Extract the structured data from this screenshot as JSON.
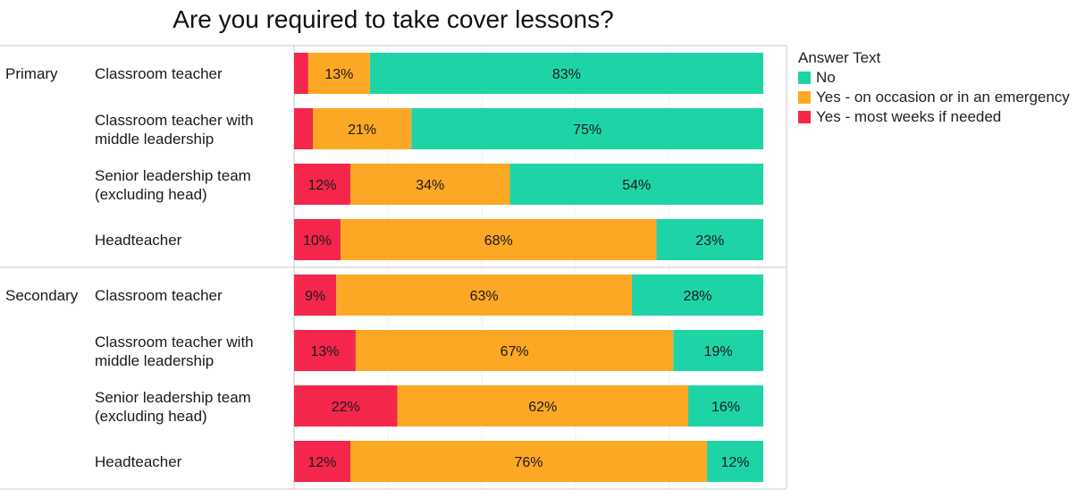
{
  "title": "Are you required to take cover lessons?",
  "chart_data": {
    "type": "bar",
    "stacked": true,
    "orientation": "horizontal",
    "title": "Are you required to take cover lessons?",
    "groups": [
      {
        "name": "Primary",
        "rows": [
          {
            "label": "Classroom teacher",
            "values": {
              "most_weeks": 3,
              "occasion": 13,
              "no": 83
            }
          },
          {
            "label": "Classroom teacher with middle leadership",
            "values": {
              "most_weeks": 4,
              "occasion": 21,
              "no": 75
            }
          },
          {
            "label": "Senior leadership team (excluding head)",
            "values": {
              "most_weeks": 12,
              "occasion": 34,
              "no": 54
            }
          },
          {
            "label": "Headteacher",
            "values": {
              "most_weeks": 10,
              "occasion": 68,
              "no": 23
            }
          }
        ]
      },
      {
        "name": "Secondary",
        "rows": [
          {
            "label": "Classroom teacher",
            "values": {
              "most_weeks": 9,
              "occasion": 63,
              "no": 28
            }
          },
          {
            "label": "Classroom teacher with middle leadership",
            "values": {
              "most_weeks": 13,
              "occasion": 67,
              "no": 19
            }
          },
          {
            "label": "Senior leadership team (excluding head)",
            "values": {
              "most_weeks": 22,
              "occasion": 62,
              "no": 16
            }
          },
          {
            "label": "Headteacher",
            "values": {
              "most_weeks": 12,
              "occasion": 76,
              "no": 12
            }
          }
        ]
      }
    ],
    "series": [
      {
        "key": "most_weeks",
        "name": "Yes - most weeks if needed",
        "color": "#f5264c"
      },
      {
        "key": "occasion",
        "name": "Yes - on occasion or in an emergency",
        "color": "#fca825"
      },
      {
        "key": "no",
        "name": "No",
        "color": "#1ed4a7"
      }
    ],
    "label_min_value": 5,
    "legend": {
      "title": "Answer Text",
      "placement": "right",
      "order": [
        "no",
        "occasion",
        "most_weeks"
      ]
    },
    "grid": true
  }
}
